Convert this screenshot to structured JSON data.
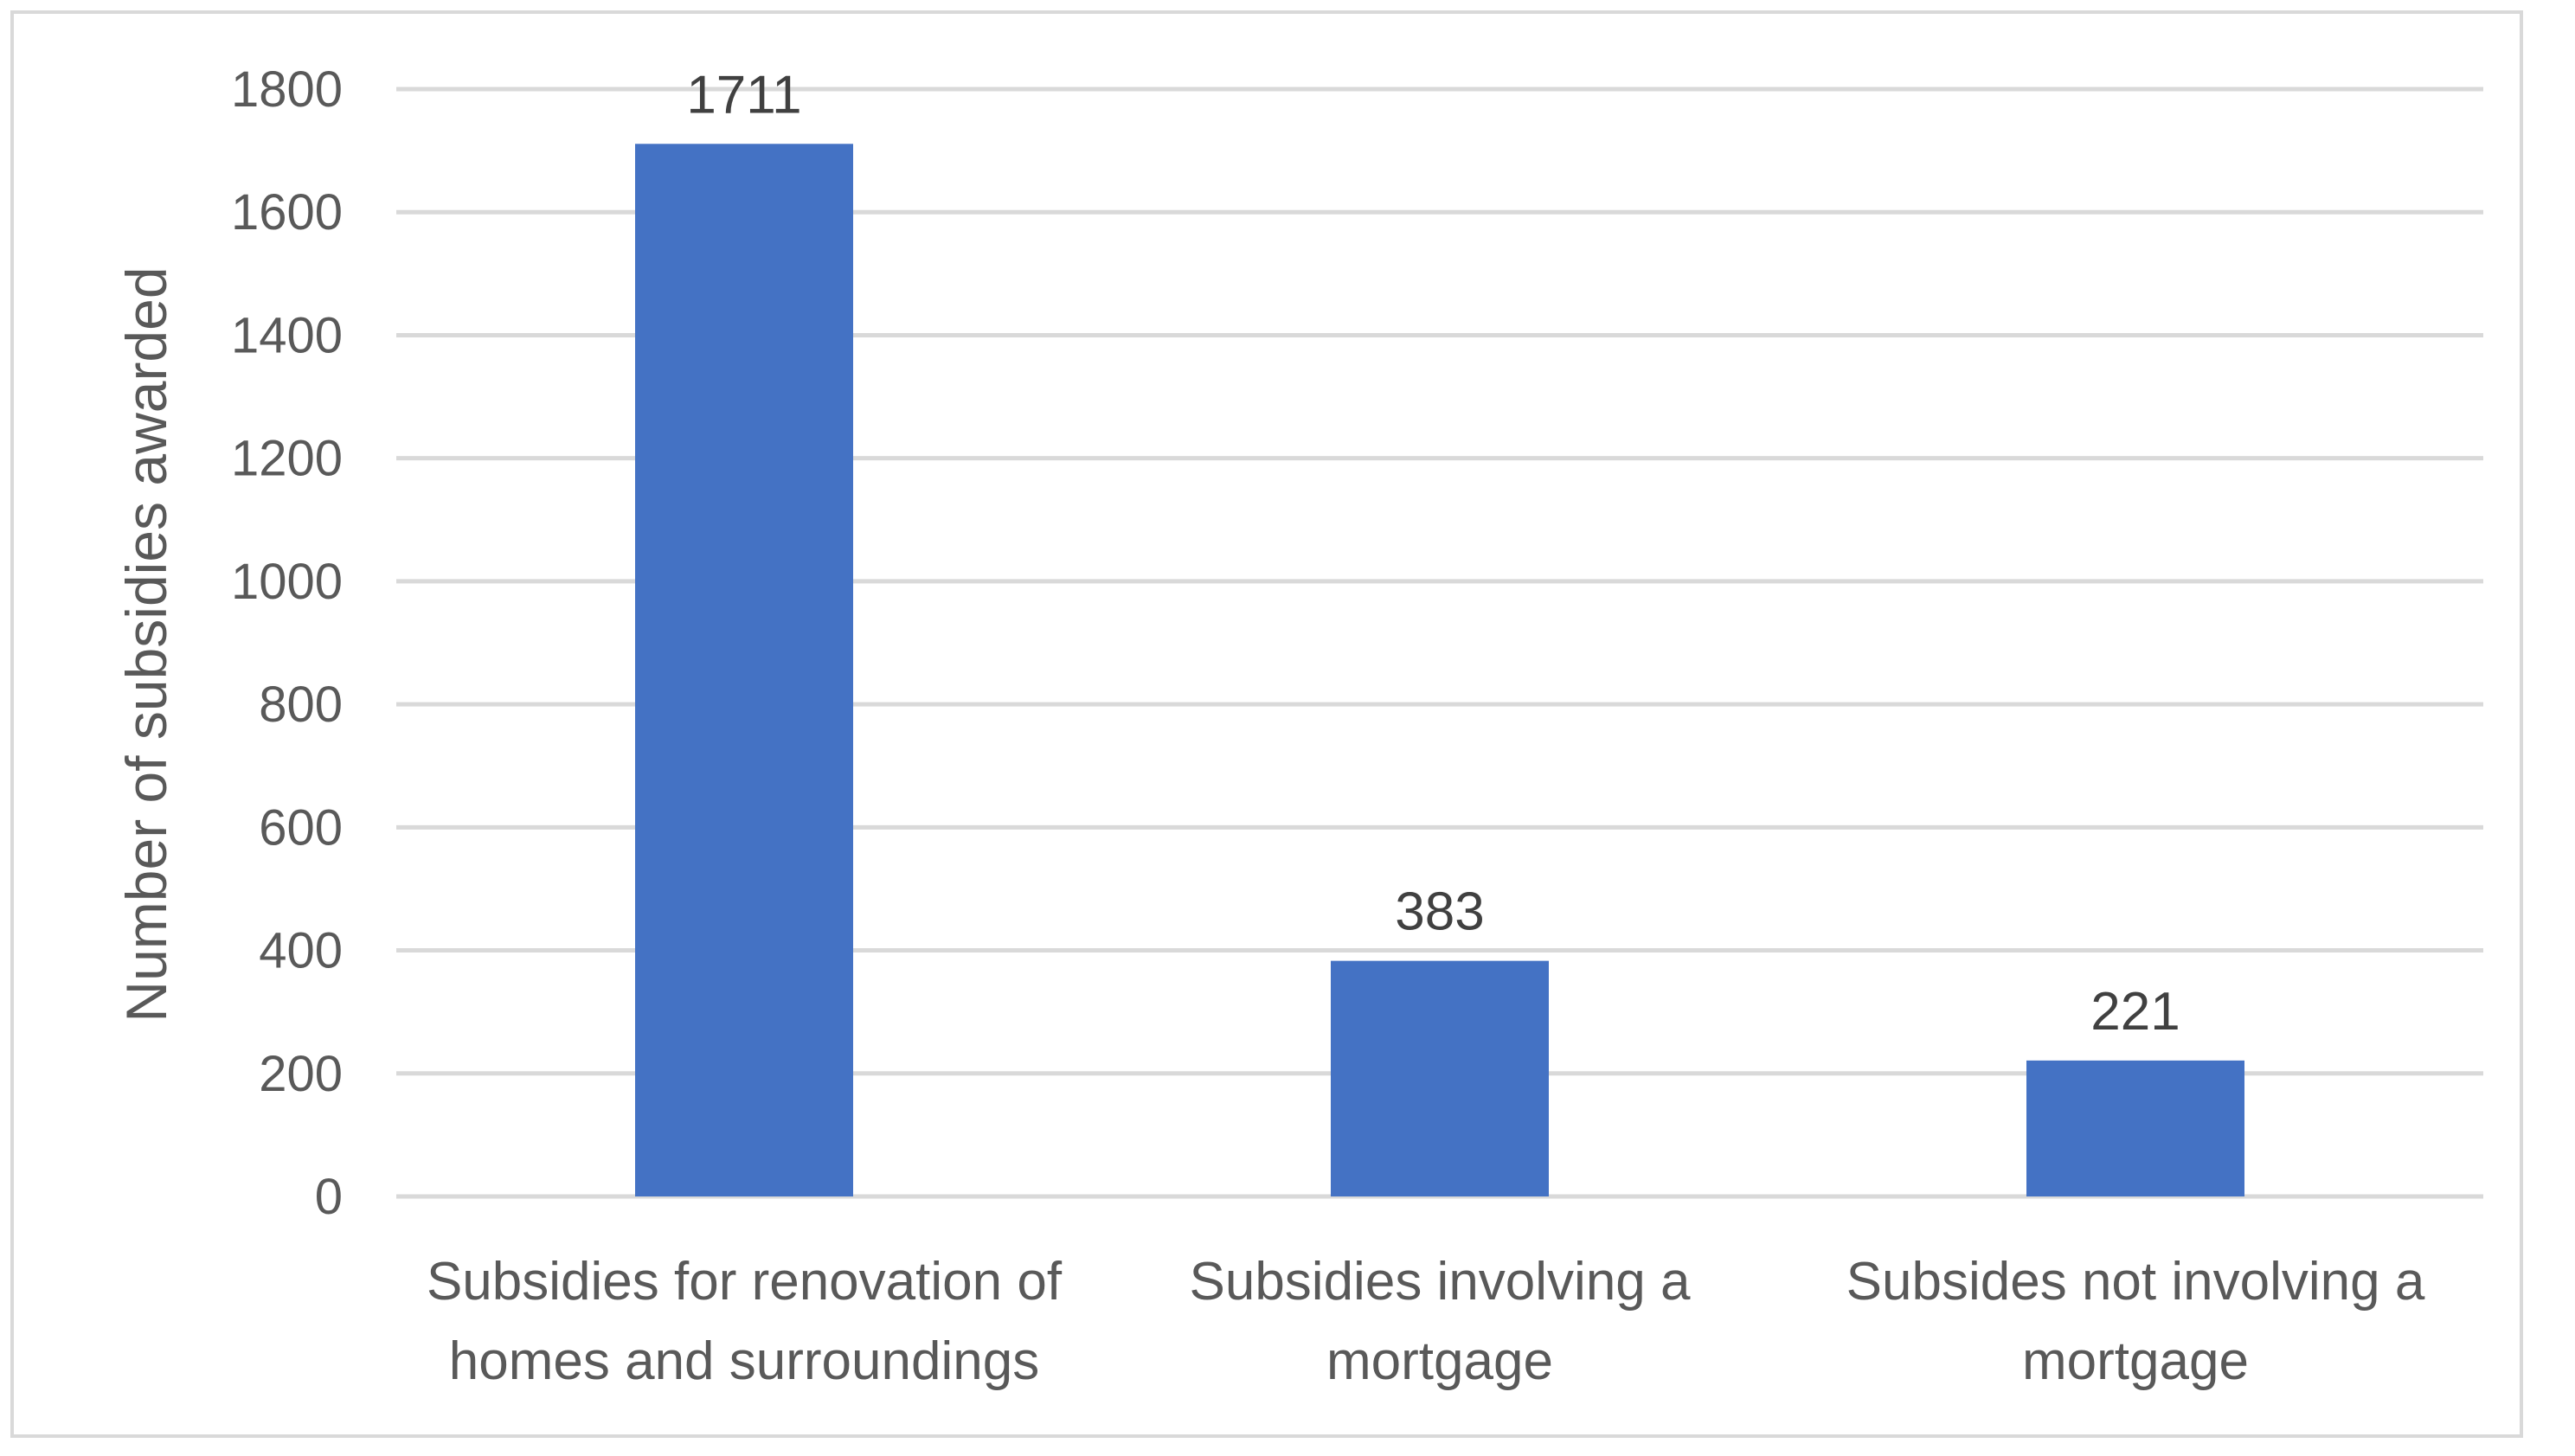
{
  "chart_data": {
    "type": "bar",
    "categories": [
      [
        "Subsidies for renovation of",
        "homes and surroundings"
      ],
      [
        "Subsidies involving a",
        "mortgage"
      ],
      [
        "Subsides not involving a",
        "mortgage"
      ]
    ],
    "values": [
      1711,
      383,
      221
    ],
    "data_labels": [
      "1711",
      "383",
      "221"
    ],
    "title": "",
    "xlabel": "",
    "ylabel": "Number of subsidies awarded",
    "ylim": [
      0,
      1800
    ],
    "yticks": [
      0,
      200,
      400,
      600,
      800,
      1000,
      1200,
      1400,
      1600,
      1800
    ],
    "grid": true,
    "legend": "none",
    "bar_color": "#4472c4",
    "grid_color": "#d9d9d9"
  }
}
